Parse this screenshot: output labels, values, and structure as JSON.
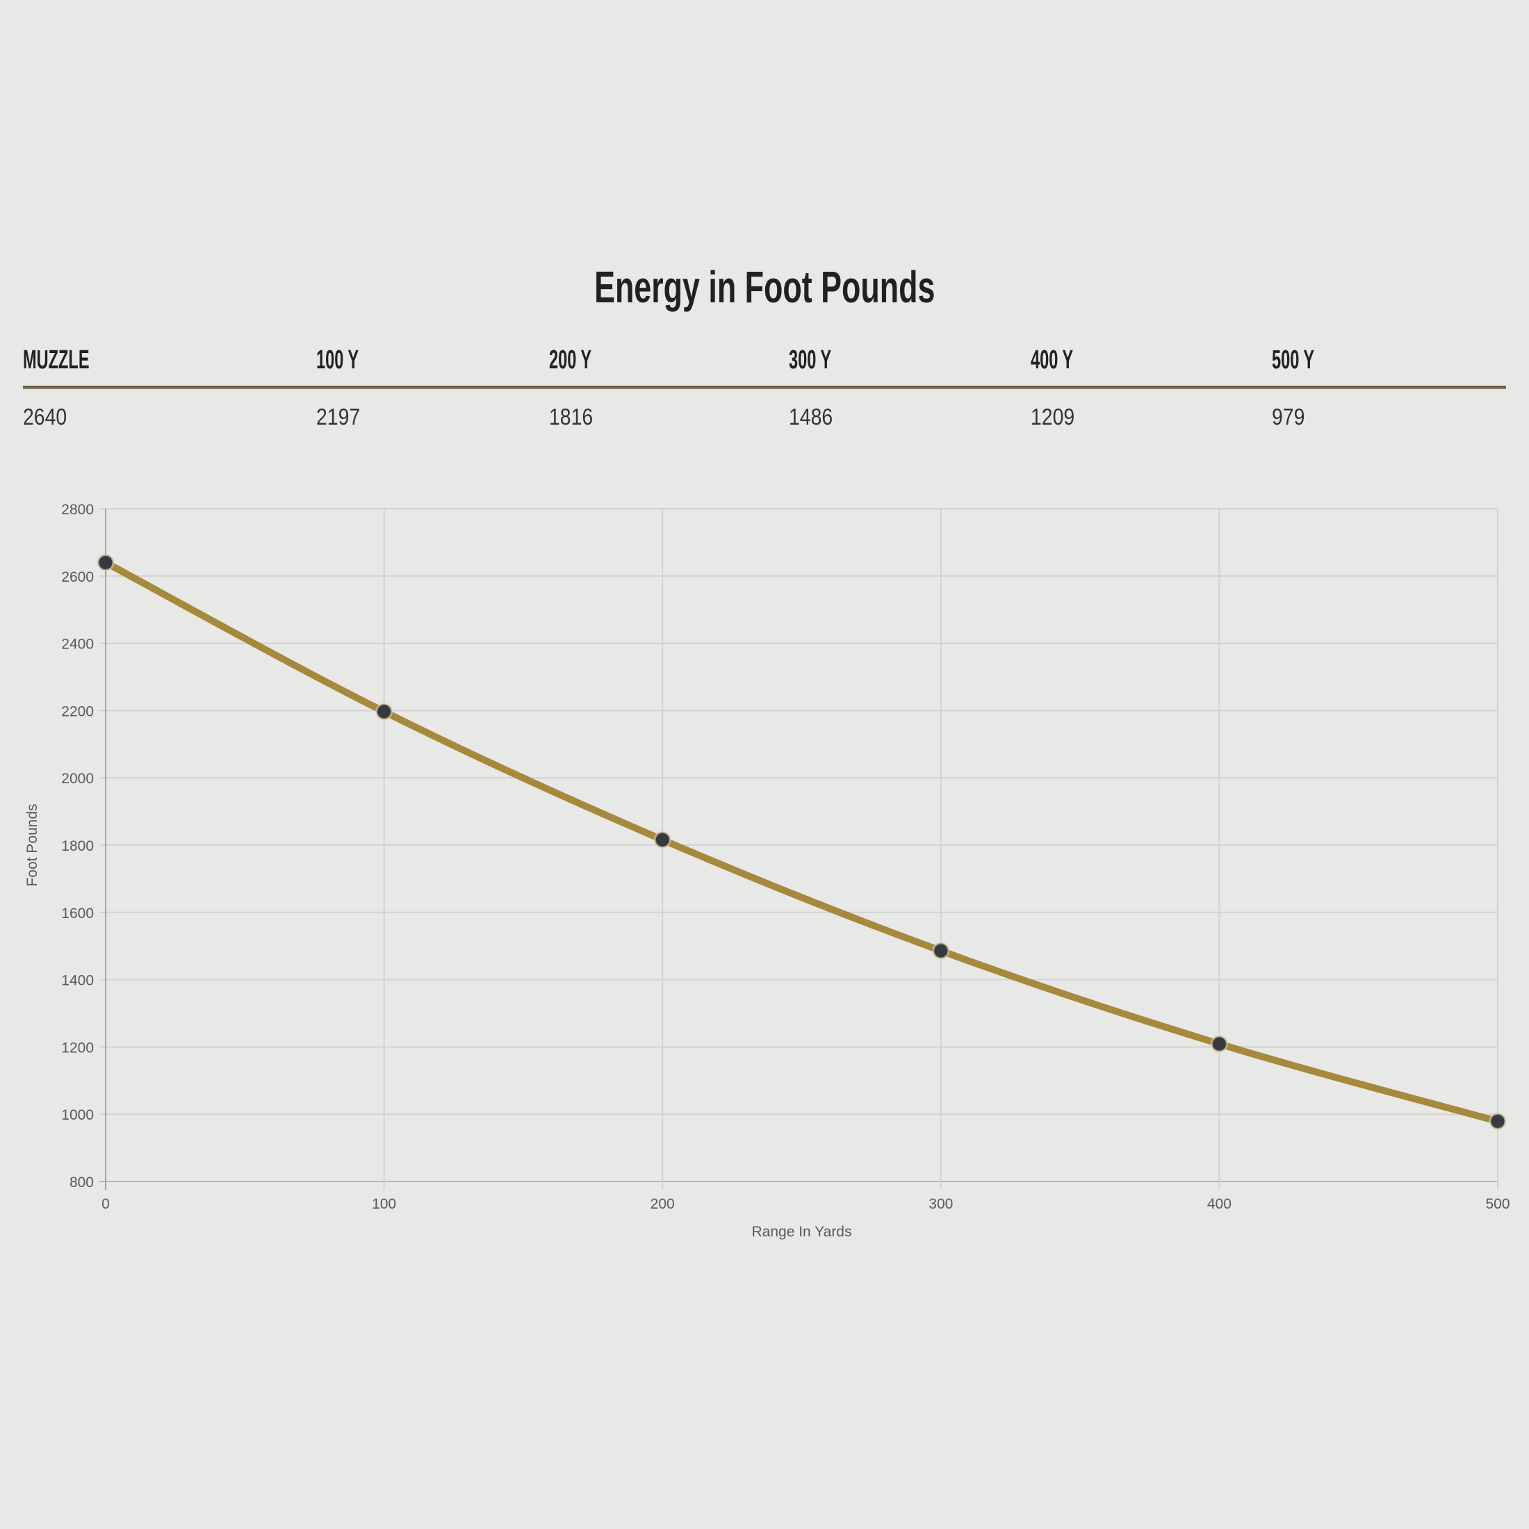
{
  "title": "Energy in Foot Pounds",
  "table": {
    "columns": [
      {
        "label": "MUZZLE",
        "value": "2640"
      },
      {
        "label": "100 Y",
        "value": "2197"
      },
      {
        "label": "200 Y",
        "value": "1816"
      },
      {
        "label": "300 Y",
        "value": "1486"
      },
      {
        "label": "400 Y",
        "value": "1209"
      },
      {
        "label": "500 Y",
        "value": "979"
      }
    ]
  },
  "chart_data": {
    "type": "line",
    "title": "Energy in Foot Pounds",
    "x": [
      0,
      100,
      200,
      300,
      400,
      500
    ],
    "series": [
      {
        "name": "Energy in Foot Pounds",
        "values": [
          2640,
          2197,
          1816,
          1486,
          1209,
          979
        ]
      }
    ],
    "xlabel": "Range In Yards",
    "ylabel": "Foot Pounds",
    "xlim": [
      0,
      500
    ],
    "ylim": [
      800,
      2800
    ],
    "ytick_step": 200,
    "xticks": [
      0,
      100,
      200,
      300,
      400,
      500
    ],
    "grid": true,
    "legend": false,
    "line_color": "#a5893c",
    "point_color": "#363a40",
    "point_halo_color": "#d8ceab",
    "grid_color": "#d2d2d0",
    "axis_color": "#a2a2a0",
    "baseline_color": "#b5b5b3",
    "tick_color": "#58595b"
  },
  "colors": {
    "background": "#e8e8e6",
    "heading": "#212121",
    "value_text": "#333333",
    "divider_dark": "#554b3c",
    "divider_light": "#968a6e"
  }
}
